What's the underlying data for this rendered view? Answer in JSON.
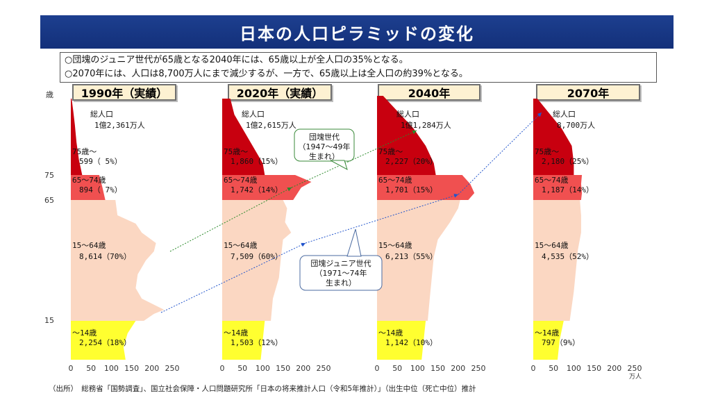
{
  "title": "日本の人口ピラミッドの変化",
  "notes": [
    "○団塊のジュニア世代が65歳となる2040年には、65歳以上が全人口の35%となる。",
    "○2070年には、人口は8,700万人にまで減少するが、一方で、65歳以上は全人口の約39%となる。"
  ],
  "axis": {
    "age_unit": "歳",
    "age_ticks": [
      "75",
      "65",
      "15"
    ],
    "x_ticks": [
      "0",
      "50",
      "100",
      "150",
      "200",
      "250"
    ],
    "x_unit": "万人"
  },
  "callouts": {
    "dankai": [
      "団塊世代",
      "（1947～49年",
      "生まれ）"
    ],
    "junior": [
      "団塊ジュニア世代",
      "（1971～74年",
      "生まれ）"
    ]
  },
  "source": "（出所）　総務省「国勢調査」、国立社会保障・人口問題研究所「日本の将来推計人口（令和5年推計）」（出生中位（死亡中位）推計",
  "colors": {
    "age75plus": "#c8000f",
    "age65to74": "#f05050",
    "age15to64": "#fbd7c2",
    "age0to14": "#ffff30",
    "title_bg": "#1a3a8a"
  },
  "chart_data": {
    "type": "pyramid",
    "xlim": [
      0,
      250
    ],
    "panels": [
      {
        "label": "1990年（実績）",
        "total_label": "総人口",
        "total_value": "1億2,361万人",
        "groups": [
          {
            "age": "75歳～",
            "value": "599（ 5%）"
          },
          {
            "age": "65～74歳",
            "value": "894（ 7%）"
          },
          {
            "age": "15～64歳",
            "value": "8,614（70%）"
          },
          {
            "age": "～14歳",
            "value": "2,254（18%）"
          }
        ]
      },
      {
        "label": "2020年（実績）",
        "total_label": "総人口",
        "total_value": "1億2,615万人",
        "groups": [
          {
            "age": "75歳～",
            "value": "1,860（15%）"
          },
          {
            "age": "65～74歳",
            "value": "1,742（14%）"
          },
          {
            "age": "15～64歳",
            "value": "7,509（60%）"
          },
          {
            "age": "～14歳",
            "value": "1,503（12%）"
          }
        ]
      },
      {
        "label": "2040年",
        "total_label": "総人口",
        "total_value": "1億1,284万人",
        "groups": [
          {
            "age": "75歳～",
            "value": "2,227（20%）"
          },
          {
            "age": "65～74歳",
            "value": "1,701（15%）"
          },
          {
            "age": "15～64歳",
            "value": "6,213（55%）"
          },
          {
            "age": "～14歳",
            "value": "1,142（10%）"
          }
        ]
      },
      {
        "label": "2070年",
        "total_label": "総人口",
        "total_value": "8,700万人",
        "groups": [
          {
            "age": "75歳～",
            "value": "2,180（25%）"
          },
          {
            "age": "65～74歳",
            "value": "1,187（14%）"
          },
          {
            "age": "15～64歳",
            "value": "4,535（52%）"
          },
          {
            "age": "～14歳",
            "value": "797（9%）"
          }
        ]
      }
    ]
  }
}
